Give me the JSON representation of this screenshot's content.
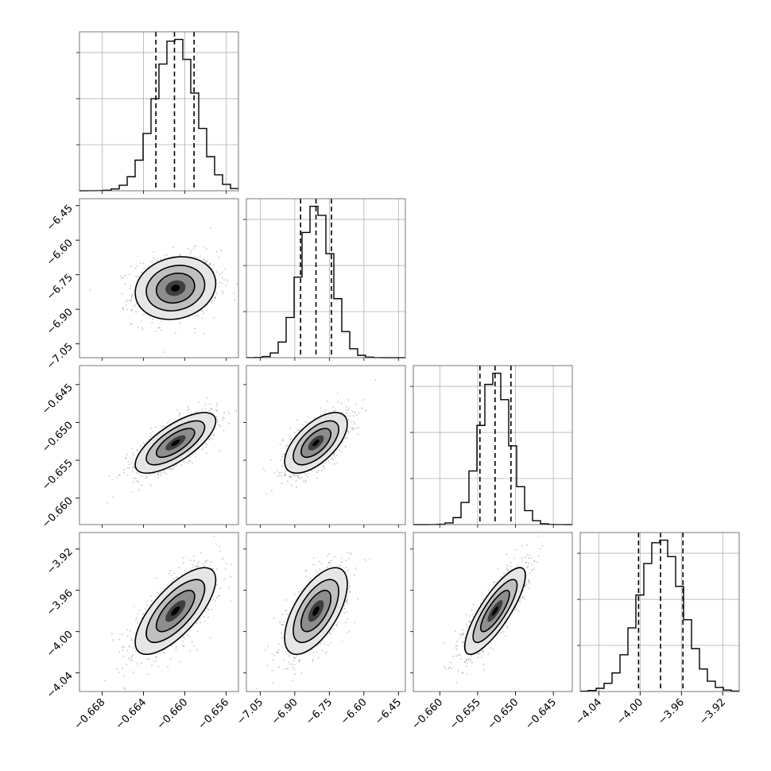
{
  "chart_data": {
    "type": "corner",
    "parameters": [
      {
        "range": [
          -0.6702,
          -0.6548
        ],
        "ticks": [
          -0.668,
          -0.664,
          -0.66,
          -0.656
        ],
        "tick_labels": [
          "−0.668",
          "−0.664",
          "−0.660",
          "−0.656"
        ],
        "quantiles": [
          -0.6628,
          -0.661,
          -0.6591
        ],
        "center": -0.6609,
        "sd": 0.00195
      },
      {
        "range": [
          -7.11,
          -6.42
        ],
        "ticks": [
          -7.05,
          -6.9,
          -6.75,
          -6.6,
          -6.45
        ],
        "tick_labels": [
          "−7.05",
          "−6.90",
          "−6.75",
          "−6.60",
          "−6.45"
        ],
        "quantiles": [
          -6.875,
          -6.808,
          -6.741
        ],
        "center": -6.808,
        "sd": 0.068
      },
      {
        "range": [
          -0.6635,
          -0.6425
        ],
        "ticks": [
          -0.66,
          -0.655,
          -0.65,
          -0.645
        ],
        "tick_labels": [
          "−0.660",
          "−0.655",
          "−0.650",
          "−0.645"
        ],
        "quantiles": [
          -0.6547,
          -0.6527,
          -0.6506
        ],
        "center": -0.6527,
        "sd": 0.002
      },
      {
        "range": [
          -4.058,
          -3.904
        ],
        "ticks": [
          -4.04,
          -4.0,
          -3.96,
          -3.92
        ],
        "tick_labels": [
          "−4.04",
          "−4.00",
          "−3.96",
          "−3.92"
        ],
        "quantiles": [
          -4.0015,
          -3.9802,
          -3.9585
        ],
        "center": -3.98,
        "sd": 0.021
      }
    ],
    "correlations": {
      "1-0": 0.15,
      "2-0": 0.72,
      "2-1": 0.62,
      "3-0": 0.72,
      "3-1": 0.62,
      "3-2": 0.82
    },
    "quantile_levels": [
      0.16,
      0.5,
      0.84
    ],
    "histogram_bins": 20,
    "contour_levels": 3,
    "grid": true,
    "xlabels": [],
    "ylabels": []
  }
}
